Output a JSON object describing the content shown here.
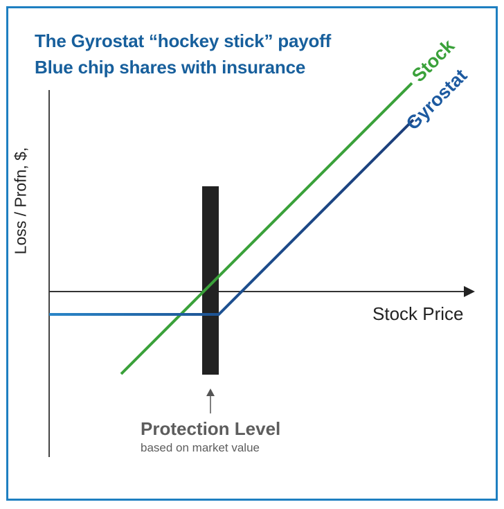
{
  "title": {
    "line1": "The Gyrostat “hockey stick” payoff",
    "line2": "Blue chip shares with insurance"
  },
  "axes": {
    "ylabel": "Loss / Profn, $,",
    "xlabel": "Stock Price"
  },
  "series": {
    "stock": "Stock",
    "gyrostat": "Gyrostat"
  },
  "protection": {
    "title": "Protection Level",
    "subtitle": "based on market value"
  },
  "colors": {
    "title": "#175f9c",
    "stock": "#3aa13a",
    "gyrostat": "#1d5aa0",
    "frame": "#1e7fc1",
    "protection_bar": "#222222"
  }
}
